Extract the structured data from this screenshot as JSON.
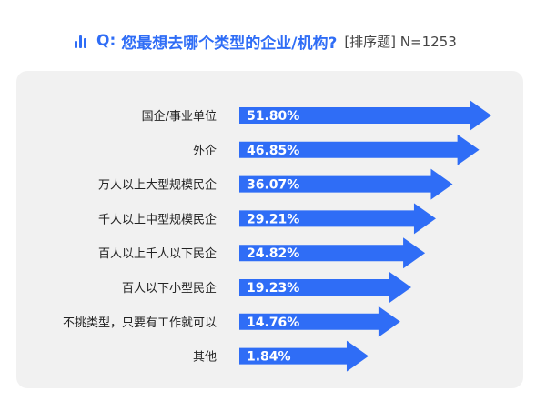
{
  "header": {
    "prefix": "Q:",
    "title": "您最想去哪个类型的企业/机构?",
    "note": "[排序题] N=1253",
    "icon": "bar-chart-icon",
    "accent_color": "#2f6df6"
  },
  "chart_data": {
    "type": "bar",
    "orientation": "horizontal",
    "categories": [
      "国企/事业单位",
      "外企",
      "万人以上大型规模民企",
      "千人以上中型规模民企",
      "百人以上千人以下民企",
      "百人以下小型民企",
      "不挑类型，只要有工作就可以",
      "其他"
    ],
    "values": [
      51.8,
      46.85,
      36.07,
      29.21,
      24.82,
      19.23,
      14.76,
      1.84
    ],
    "labels": [
      "51.80%",
      "46.85%",
      "36.07%",
      "29.21%",
      "24.82%",
      "19.23%",
      "14.76%",
      "1.84%"
    ],
    "title": "您最想去哪个类型的企业/机构?",
    "xlabel": "",
    "ylabel": "",
    "bar_color": "#2f6df6",
    "label_color": "#ffffff",
    "grid": false,
    "legend": "none"
  }
}
